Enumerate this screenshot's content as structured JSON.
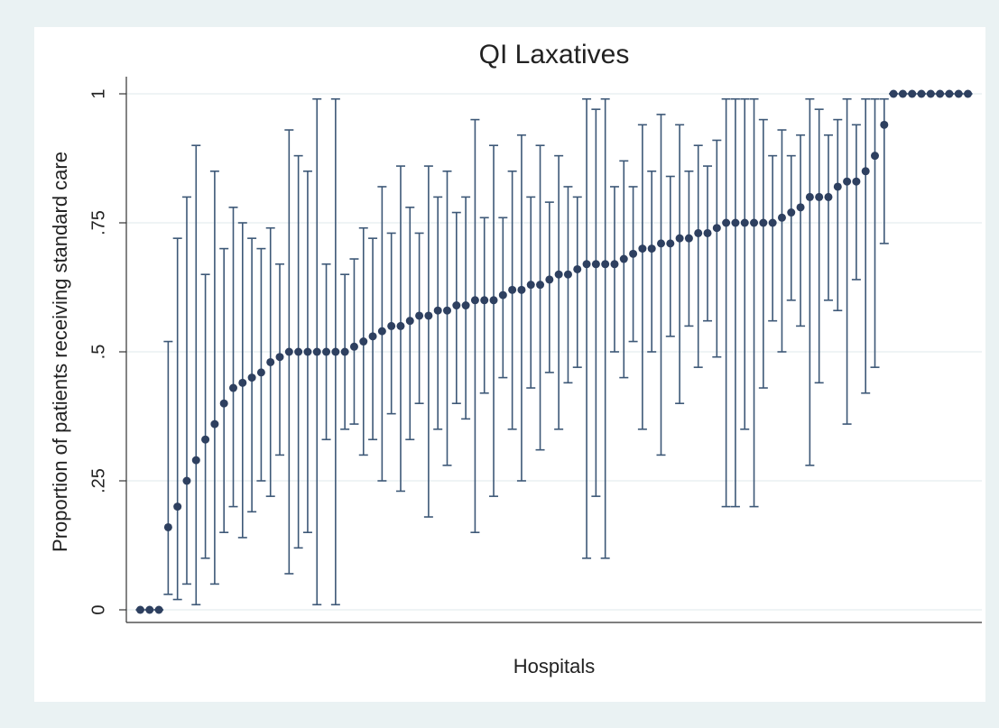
{
  "chart_data": {
    "type": "errorbar",
    "title": "QI Laxatives",
    "x_label": "Hospitals",
    "y_label": "Proportion of patients receiving standard care",
    "x": [
      1,
      2,
      3,
      4,
      5,
      6,
      7,
      8,
      9,
      10,
      11,
      12,
      13,
      14,
      15,
      16,
      17,
      18,
      19,
      20,
      21,
      22,
      23,
      24,
      25,
      26,
      27,
      28,
      29,
      30,
      31,
      32,
      33,
      34,
      35,
      36,
      37,
      38,
      39,
      40,
      41,
      42,
      43,
      44,
      45,
      46,
      47,
      48,
      49,
      50,
      51,
      52,
      53,
      54,
      55,
      56,
      57,
      58,
      59,
      60,
      61,
      62,
      63,
      64,
      65,
      66,
      67,
      68,
      69,
      70,
      71,
      72,
      73,
      74,
      75,
      76,
      77,
      78,
      79,
      80,
      81,
      82,
      83,
      84,
      85,
      86,
      87,
      88,
      89,
      90
    ],
    "values": [
      0,
      0,
      0,
      0.16,
      0.2,
      0.25,
      0.29,
      0.33,
      0.36,
      0.4,
      0.43,
      0.44,
      0.45,
      0.46,
      0.48,
      0.49,
      0.5,
      0.5,
      0.5,
      0.5,
      0.5,
      0.5,
      0.5,
      0.51,
      0.52,
      0.53,
      0.54,
      0.55,
      0.55,
      0.56,
      0.57,
      0.57,
      0.58,
      0.58,
      0.59,
      0.59,
      0.6,
      0.6,
      0.6,
      0.61,
      0.62,
      0.62,
      0.63,
      0.63,
      0.64,
      0.65,
      0.65,
      0.66,
      0.67,
      0.67,
      0.67,
      0.67,
      0.68,
      0.69,
      0.7,
      0.7,
      0.71,
      0.71,
      0.72,
      0.72,
      0.73,
      0.73,
      0.74,
      0.75,
      0.75,
      0.75,
      0.75,
      0.75,
      0.75,
      0.76,
      0.77,
      0.78,
      0.8,
      0.8,
      0.8,
      0.82,
      0.83,
      0.83,
      0.85,
      0.88,
      0.94,
      1,
      1,
      1,
      1,
      1,
      1,
      1,
      1,
      1
    ],
    "lower": [
      0,
      0,
      0,
      0.03,
      0.02,
      0.05,
      0.01,
      0.1,
      0.05,
      0.15,
      0.2,
      0.14,
      0.19,
      0.25,
      0.22,
      0.3,
      0.07,
      0.12,
      0.15,
      0.01,
      0.33,
      0.01,
      0.35,
      0.36,
      0.3,
      0.33,
      0.25,
      0.38,
      0.23,
      0.33,
      0.4,
      0.18,
      0.35,
      0.28,
      0.4,
      0.37,
      0.15,
      0.42,
      0.22,
      0.45,
      0.35,
      0.25,
      0.43,
      0.31,
      0.46,
      0.35,
      0.44,
      0.47,
      0.1,
      0.22,
      0.1,
      0.5,
      0.45,
      0.52,
      0.35,
      0.5,
      0.3,
      0.53,
      0.4,
      0.55,
      0.47,
      0.56,
      0.49,
      0.2,
      0.2,
      0.35,
      0.2,
      0.43,
      0.56,
      0.5,
      0.6,
      0.55,
      0.28,
      0.44,
      0.6,
      0.58,
      0.36,
      0.64,
      0.42,
      0.47,
      0.71,
      1,
      1,
      1,
      1,
      1,
      1,
      1,
      1,
      1
    ],
    "upper": [
      0,
      0,
      0,
      0.52,
      0.72,
      0.8,
      0.9,
      0.65,
      0.85,
      0.7,
      0.78,
      0.75,
      0.72,
      0.7,
      0.74,
      0.67,
      0.93,
      0.88,
      0.85,
      0.99,
      0.67,
      0.99,
      0.65,
      0.68,
      0.74,
      0.72,
      0.82,
      0.73,
      0.86,
      0.78,
      0.73,
      0.86,
      0.8,
      0.85,
      0.77,
      0.8,
      0.95,
      0.76,
      0.9,
      0.76,
      0.85,
      0.92,
      0.8,
      0.9,
      0.79,
      0.88,
      0.82,
      0.8,
      0.99,
      0.97,
      0.99,
      0.82,
      0.87,
      0.82,
      0.94,
      0.85,
      0.96,
      0.84,
      0.94,
      0.85,
      0.9,
      0.86,
      0.91,
      0.99,
      0.99,
      0.99,
      0.99,
      0.95,
      0.88,
      0.93,
      0.88,
      0.92,
      0.99,
      0.97,
      0.92,
      0.95,
      0.99,
      0.94,
      0.99,
      0.99,
      0.99,
      1,
      1,
      1,
      1,
      1,
      1,
      1,
      1,
      1
    ],
    "xlim": [
      -0.5,
      91.5
    ],
    "ylim": [
      0,
      1
    ],
    "yticks": [
      0,
      {
        "value": 0.25,
        "label": ".25"
      },
      {
        "value": 0.5,
        "label": ".5"
      },
      {
        "value": 0.75,
        "label": ".75"
      },
      1
    ],
    "grid": true,
    "color": "#2e4060",
    "bar_color": "#3d5877"
  }
}
